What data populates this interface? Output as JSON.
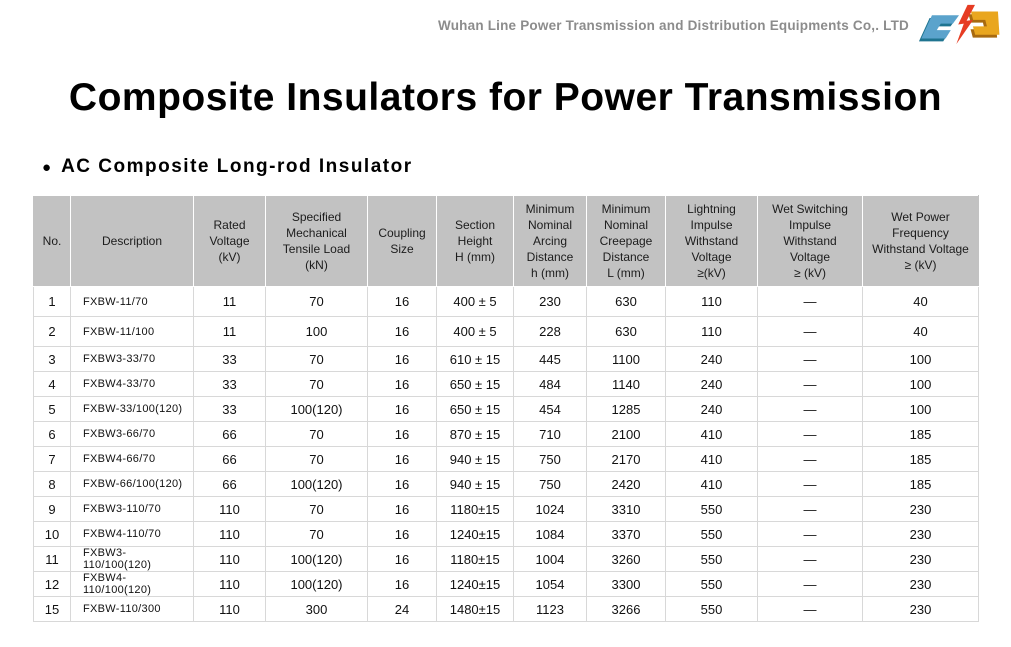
{
  "topbar": {
    "company_name": "Wuhan Line Power Transmission and Distribution Equipments Co,. LTD"
  },
  "page": {
    "title": "Composite Insulators for Power Transmission",
    "section_bullet": "●",
    "section_heading": "AC Composite Long-rod Insulator"
  },
  "colors": {
    "header_bg": "#c2c2c2",
    "body_border": "#d8d8d8",
    "company_text": "#8c8c8c",
    "logo_blue": "#5ba3cc",
    "logo_blue_dark": "#1f7490",
    "logo_yellow": "#e9a61f",
    "logo_yellow_dark": "#a86a10",
    "logo_red": "#e63c23"
  },
  "chart_data": {
    "type": "table",
    "title": "AC Composite Long-rod Insulator",
    "columns": [
      "No.",
      "Description",
      "Rated\nVoltage\n(kV)",
      "Specified\nMechanical\nTensile Load\n(kN)",
      "Coupling\nSize",
      "Section\nHeight\nH (mm)",
      "Minimum\nNominal\nArcing\nDistance\nh (mm)",
      "Minimum\nNominal\nCreepage\nDistance\nL (mm)",
      "Lightning\nImpulse\nWithstand\nVoltage\n≥(kV)",
      "Wet Switching\nImpulse\nWithstand\nVoltage\n≥ (kV)",
      "Wet Power\nFrequency\nWithstand Voltage\n≥  (kV)"
    ],
    "rows": [
      [
        "1",
        "FXBW-11/70",
        "11",
        "70",
        "16",
        "400 ± 5",
        "230",
        "630",
        "110",
        "—",
        "40"
      ],
      [
        "2",
        "FXBW-11/100",
        "11",
        "100",
        "16",
        "400 ± 5",
        "228",
        "630",
        "110",
        "—",
        "40"
      ],
      [
        "3",
        "FXBW3-33/70",
        "33",
        "70",
        "16",
        "610 ± 15",
        "445",
        "1100",
        "240",
        "—",
        "100"
      ],
      [
        "4",
        "FXBW4-33/70",
        "33",
        "70",
        "16",
        "650 ± 15",
        "484",
        "1140",
        "240",
        "—",
        "100"
      ],
      [
        "5",
        "FXBW-33/100(120)",
        "33",
        "100(120)",
        "16",
        "650 ± 15",
        "454",
        "1285",
        "240",
        "—",
        "100"
      ],
      [
        "6",
        "FXBW3-66/70",
        "66",
        "70",
        "16",
        "870 ± 15",
        "710",
        "2100",
        "410",
        "—",
        "185"
      ],
      [
        "7",
        "FXBW4-66/70",
        "66",
        "70",
        "16",
        "940 ± 15",
        "750",
        "2170",
        "410",
        "—",
        "185"
      ],
      [
        "8",
        "FXBW-66/100(120)",
        "66",
        "100(120)",
        "16",
        "940 ± 15",
        "750",
        "2420",
        "410",
        "—",
        "185"
      ],
      [
        "9",
        "FXBW3-110/70",
        "110",
        "70",
        "16",
        "1180±15",
        "1024",
        "3310",
        "550",
        "—",
        "230"
      ],
      [
        "10",
        "FXBW4-110/70",
        "110",
        "70",
        "16",
        "1240±15",
        "1084",
        "3370",
        "550",
        "—",
        "230"
      ],
      [
        "11",
        "FXBW3-110/100(120)",
        "110",
        "100(120)",
        "16",
        "1180±15",
        "1004",
        "3260",
        "550",
        "—",
        "230"
      ],
      [
        "12",
        "FXBW4-110/100(120)",
        "110",
        "100(120)",
        "16",
        "1240±15",
        "1054",
        "3300",
        "550",
        "—",
        "230"
      ],
      [
        "15",
        "FXBW-110/300",
        "110",
        "300",
        "24",
        "1480±15",
        "1123",
        "3266",
        "550",
        "—",
        "230"
      ]
    ]
  }
}
